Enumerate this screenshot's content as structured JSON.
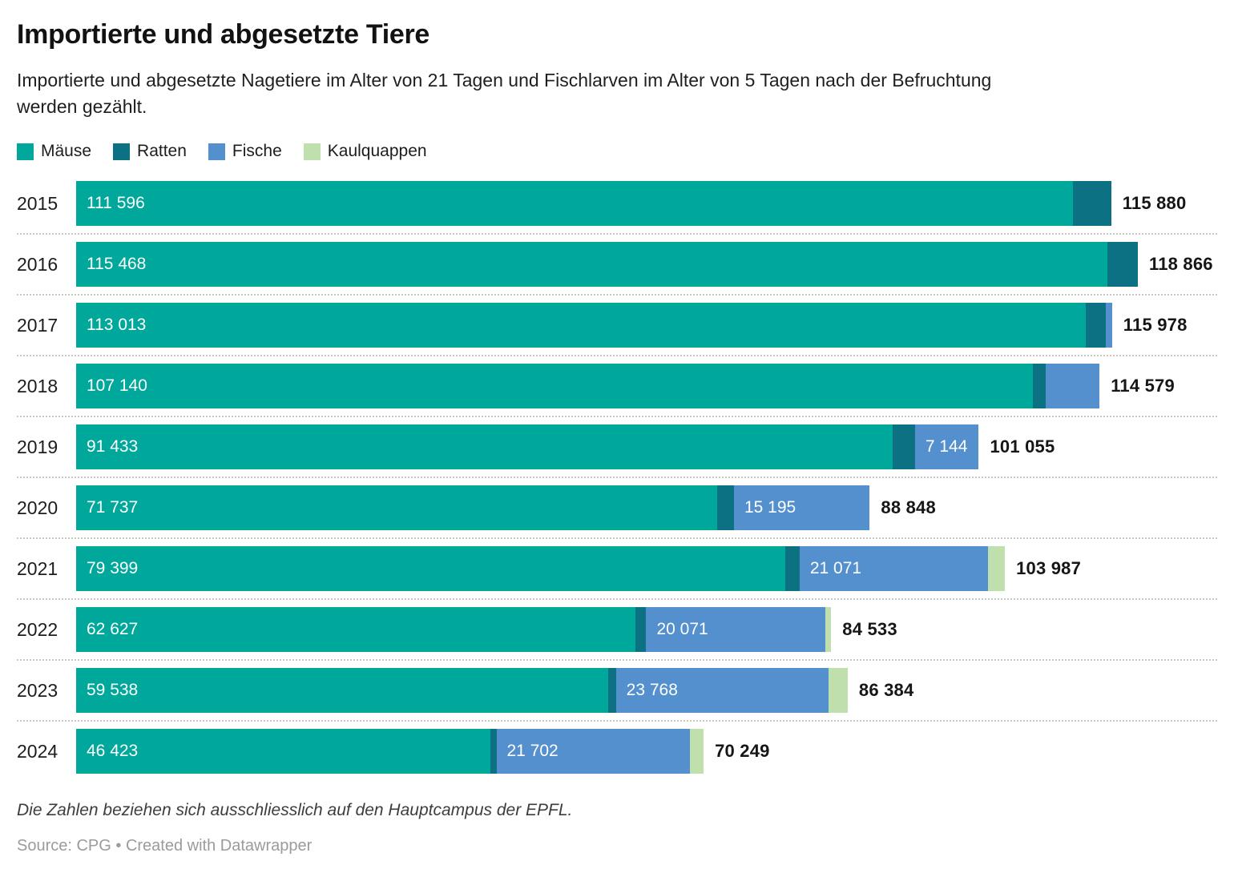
{
  "header": {
    "title": "Importierte und abgesetzte Tiere",
    "subtitle": "Importierte und abgesetzte Nagetiere im Alter von 21 Tagen und Fischlarven im Alter von 5 Tagen nach der Befruchtung\nwerden gezählt."
  },
  "legend": [
    {
      "label": "Mäuse",
      "color": "#00A79B"
    },
    {
      "label": "Ratten",
      "color": "#0B7183"
    },
    {
      "label": "Fische",
      "color": "#5490CD"
    },
    {
      "label": "Kaulquappen",
      "color": "#BFDFAD"
    }
  ],
  "chart_data": {
    "type": "bar",
    "stacked": true,
    "orientation": "horizontal",
    "axis_hidden": true,
    "x_max": 118866,
    "series": [
      {
        "name": "Mäuse",
        "color": "#00A79B"
      },
      {
        "name": "Ratten",
        "color": "#0B7183"
      },
      {
        "name": "Fische",
        "color": "#5490CD"
      },
      {
        "name": "Kaulquappen",
        "color": "#BFDFAD"
      }
    ],
    "rows": [
      {
        "year": "2015",
        "total": 115880,
        "total_label": "115 880",
        "segments": [
          {
            "name": "Mäuse",
            "value": 111596,
            "label": "111 596"
          },
          {
            "name": "Ratten",
            "value": 4284,
            "label": null
          }
        ]
      },
      {
        "year": "2016",
        "total": 118866,
        "total_label": "118 866",
        "segments": [
          {
            "name": "Mäuse",
            "value": 115468,
            "label": "115 468"
          },
          {
            "name": "Ratten",
            "value": 3398,
            "label": null
          }
        ]
      },
      {
        "year": "2017",
        "total": 115978,
        "total_label": "115 978",
        "segments": [
          {
            "name": "Mäuse",
            "value": 113013,
            "label": "113 013"
          },
          {
            "name": "Ratten",
            "value": 2265,
            "label": null
          },
          {
            "name": "Fische",
            "value": 700,
            "label": null
          }
        ]
      },
      {
        "year": "2018",
        "total": 114579,
        "total_label": "114 579",
        "segments": [
          {
            "name": "Mäuse",
            "value": 107140,
            "label": "107 140"
          },
          {
            "name": "Ratten",
            "value": 1400,
            "label": null
          },
          {
            "name": "Fische",
            "value": 6039,
            "label": null
          }
        ]
      },
      {
        "year": "2019",
        "total": 101055,
        "total_label": "101 055",
        "segments": [
          {
            "name": "Mäuse",
            "value": 91433,
            "label": "91 433"
          },
          {
            "name": "Ratten",
            "value": 2478,
            "label": null
          },
          {
            "name": "Fische",
            "value": 7144,
            "label": "7 144"
          }
        ]
      },
      {
        "year": "2020",
        "total": 88848,
        "total_label": "88 848",
        "segments": [
          {
            "name": "Mäuse",
            "value": 71737,
            "label": "71 737"
          },
          {
            "name": "Ratten",
            "value": 1916,
            "label": null
          },
          {
            "name": "Fische",
            "value": 15195,
            "label": "15 195"
          }
        ]
      },
      {
        "year": "2021",
        "total": 103987,
        "total_label": "103 987",
        "segments": [
          {
            "name": "Mäuse",
            "value": 79399,
            "label": "79 399"
          },
          {
            "name": "Ratten",
            "value": 1600,
            "label": null
          },
          {
            "name": "Fische",
            "value": 21071,
            "label": "21 071"
          },
          {
            "name": "Kaulquappen",
            "value": 1917,
            "label": null
          }
        ]
      },
      {
        "year": "2022",
        "total": 84533,
        "total_label": "84 533",
        "segments": [
          {
            "name": "Mäuse",
            "value": 62627,
            "label": "62 627"
          },
          {
            "name": "Ratten",
            "value": 1200,
            "label": null
          },
          {
            "name": "Fische",
            "value": 20071,
            "label": "20 071"
          },
          {
            "name": "Kaulquappen",
            "value": 635,
            "label": null
          }
        ]
      },
      {
        "year": "2023",
        "total": 86384,
        "total_label": "86 384",
        "segments": [
          {
            "name": "Mäuse",
            "value": 59538,
            "label": "59 538"
          },
          {
            "name": "Ratten",
            "value": 900,
            "label": null
          },
          {
            "name": "Fische",
            "value": 23768,
            "label": "23 768"
          },
          {
            "name": "Kaulquappen",
            "value": 2178,
            "label": null
          }
        ]
      },
      {
        "year": "2024",
        "total": 70249,
        "total_label": "70 249",
        "segments": [
          {
            "name": "Mäuse",
            "value": 46423,
            "label": "46 423"
          },
          {
            "name": "Ratten",
            "value": 630,
            "label": null
          },
          {
            "name": "Fische",
            "value": 21702,
            "label": "21 702"
          },
          {
            "name": "Kaulquappen",
            "value": 1494,
            "label": null
          }
        ]
      }
    ]
  },
  "footer": {
    "note": "Die Zahlen beziehen sich ausschliesslich auf den Hauptcampus der EPFL.",
    "source": "Source: CPG • Created with Datawrapper"
  }
}
